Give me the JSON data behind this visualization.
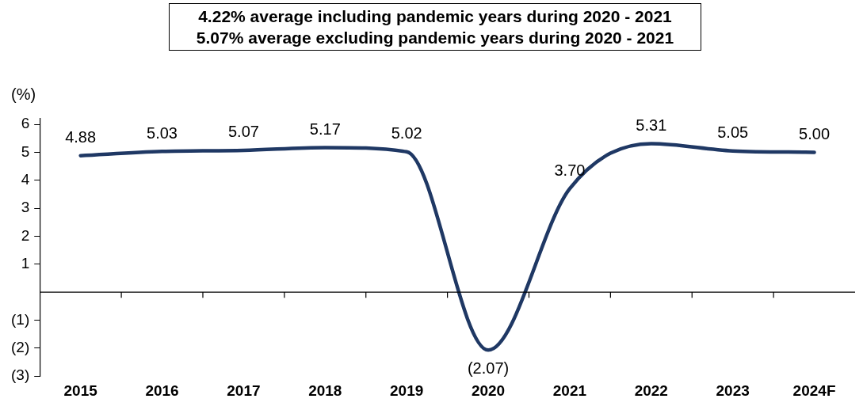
{
  "chart_data": {
    "type": "line",
    "title": "4.22% average including pandemic years during 2020 - 2021",
    "subtitle": "5.07% average excluding pandemic years during 2020 - 2021",
    "ylabel": "(%)",
    "categories": [
      "2015",
      "2016",
      "2017",
      "2018",
      "2019",
      "2020",
      "2021",
      "2022",
      "2023",
      "2024F"
    ],
    "series": [
      {
        "color": "#1f3864",
        "values": [
          4.88,
          5.03,
          5.07,
          5.17,
          5.02,
          -2.07,
          3.7,
          5.31,
          5.05,
          5.0
        ]
      }
    ],
    "value_labels": [
      "4.88",
      "5.03",
      "5.07",
      "5.17",
      "5.02",
      "(2.07)",
      "3.70",
      "5.31",
      "5.05",
      "5.00"
    ],
    "ylim": [
      -3,
      6.2
    ],
    "yticks": [
      {
        "value": -3,
        "label": "(3)"
      },
      {
        "value": -2,
        "label": "(2)"
      },
      {
        "value": -1,
        "label": "(1)"
      },
      1,
      2,
      3,
      4,
      5,
      6
    ],
    "grid": false,
    "legend": false,
    "marker": "none",
    "line_style": "solid"
  }
}
